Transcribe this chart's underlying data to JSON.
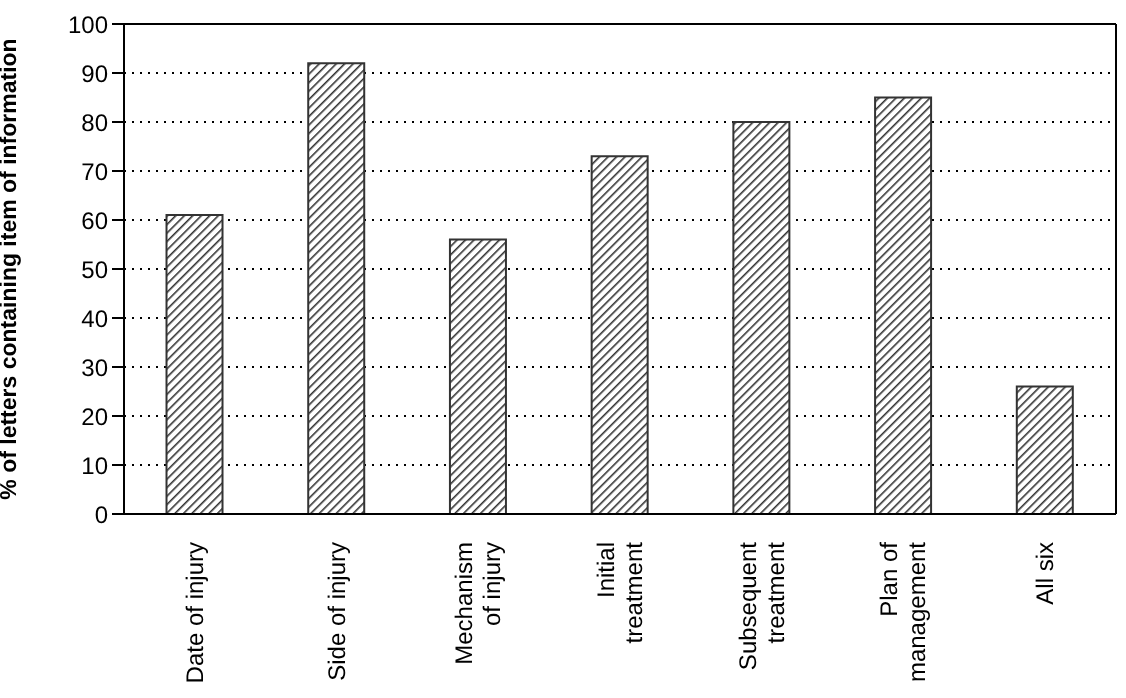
{
  "chart_data": {
    "type": "bar",
    "ylabel": "% of letters containing item of information",
    "categories": [
      "Date of injury",
      "Side of injury",
      "Mechanism\nof injury",
      "Initial\ntreatment",
      "Subsequent\ntreatment",
      "Plan of\nmanagement",
      "All six"
    ],
    "values": [
      61,
      92,
      56,
      73,
      80,
      85,
      26
    ],
    "color": "#333333",
    "ylim": [
      0,
      100
    ],
    "yticks": [
      0,
      10,
      20,
      30,
      40,
      50,
      60,
      70,
      80,
      90,
      100
    ],
    "grid": "y"
  }
}
